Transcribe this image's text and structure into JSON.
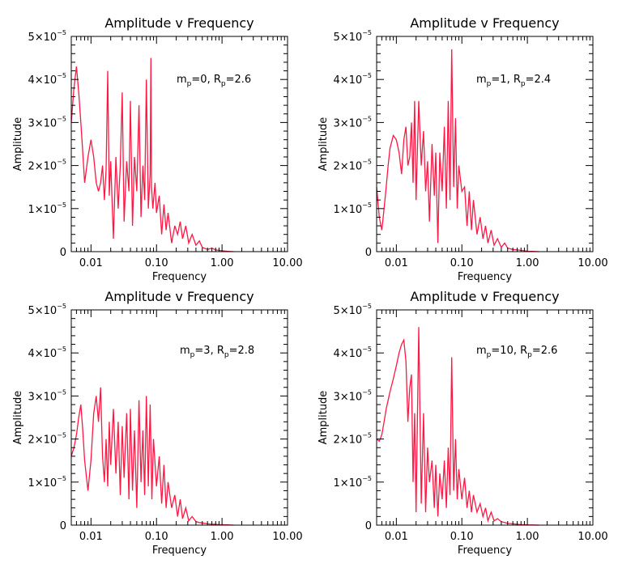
{
  "colors": {
    "series": "#ff1744",
    "axes": "#000000",
    "background": "#ffffff"
  },
  "chart_data": [
    {
      "type": "line",
      "title": "Amplitude v Frequency",
      "xlabel": "Frequency",
      "ylabel": "Amplitude",
      "xscale": "log",
      "xlim": [
        0.005,
        10
      ],
      "ylim": [
        0,
        5e-05
      ],
      "xticks": [
        {
          "value": 0.01,
          "label": "0.01"
        },
        {
          "value": 0.1,
          "label": "0.10"
        },
        {
          "value": 1,
          "label": "1.00"
        },
        {
          "value": 10,
          "label": "10.00"
        }
      ],
      "yticks": [
        {
          "value": 0,
          "base": "0",
          "exp": ""
        },
        {
          "value": 1e-05,
          "base": "1×10",
          "exp": "−5"
        },
        {
          "value": 2e-05,
          "base": "2×10",
          "exp": "−5"
        },
        {
          "value": 3e-05,
          "base": "3×10",
          "exp": "−5"
        },
        {
          "value": 4e-05,
          "base": "4×10",
          "exp": "−5"
        },
        {
          "value": 5e-05,
          "base": "5×10",
          "exp": "−5"
        }
      ],
      "annotation": {
        "m": "0",
        "R": "2.6",
        "m_label": "m",
        "R_label": "R",
        "subscript": "p"
      },
      "series": [
        {
          "name": "amplitude",
          "x": [
            0.005,
            0.0055,
            0.006,
            0.0065,
            0.007,
            0.0075,
            0.008,
            0.009,
            0.01,
            0.011,
            0.012,
            0.013,
            0.014,
            0.015,
            0.016,
            0.017,
            0.018,
            0.019,
            0.02,
            0.022,
            0.024,
            0.026,
            0.028,
            0.03,
            0.032,
            0.035,
            0.038,
            0.04,
            0.043,
            0.046,
            0.05,
            0.054,
            0.058,
            0.062,
            0.066,
            0.07,
            0.075,
            0.08,
            0.082,
            0.084,
            0.088,
            0.095,
            0.1,
            0.11,
            0.12,
            0.13,
            0.14,
            0.15,
            0.17,
            0.19,
            0.21,
            0.23,
            0.25,
            0.28,
            0.31,
            0.35,
            0.4,
            0.45,
            0.5,
            0.6,
            0.7,
            0.8,
            0.9,
            1.0,
            1.2,
            1.5
          ],
          "y": [
            3e-05,
            3.8e-05,
            4.3e-05,
            3.7e-05,
            3e-05,
            2.3e-05,
            1.6e-05,
            2.2e-05,
            2.6e-05,
            2.2e-05,
            1.6e-05,
            1.4e-05,
            1.6e-05,
            2e-05,
            1.2e-05,
            1.9e-05,
            4.2e-05,
            1.3e-05,
            2.1e-05,
            3e-06,
            2.2e-05,
            1e-05,
            2e-05,
            3.7e-05,
            7e-06,
            2.1e-05,
            1.4e-05,
            3.5e-05,
            6e-06,
            2.2e-05,
            1.4e-05,
            3.4e-05,
            8e-06,
            2e-05,
            1.2e-05,
            4e-05,
            1e-05,
            1.8e-05,
            4.5e-05,
            1.5e-05,
            1e-05,
            1.6e-05,
            9e-06,
            1.3e-05,
            4e-06,
            1.1e-05,
            5e-06,
            9e-06,
            2e-06,
            6e-06,
            4e-06,
            7e-06,
            3e-06,
            6e-06,
            2e-06,
            4e-06,
            1.5e-06,
            2.5e-06,
            1e-06,
            5e-07,
            8e-07,
            4e-07,
            3e-07,
            2e-07,
            1e-07,
            0.0
          ]
        }
      ]
    },
    {
      "type": "line",
      "title": "Amplitude v Frequency",
      "xlabel": "Frequency",
      "ylabel": "Amplitude",
      "xscale": "log",
      "xlim": [
        0.005,
        10
      ],
      "ylim": [
        0,
        5e-05
      ],
      "xticks": [
        {
          "value": 0.01,
          "label": "0.01"
        },
        {
          "value": 0.1,
          "label": "0.10"
        },
        {
          "value": 1,
          "label": "1.00"
        },
        {
          "value": 10,
          "label": "10.00"
        }
      ],
      "yticks": [
        {
          "value": 0,
          "base": "0",
          "exp": ""
        },
        {
          "value": 1e-05,
          "base": "1×10",
          "exp": "−5"
        },
        {
          "value": 2e-05,
          "base": "2×10",
          "exp": "−5"
        },
        {
          "value": 3e-05,
          "base": "3×10",
          "exp": "−5"
        },
        {
          "value": 4e-05,
          "base": "4×10",
          "exp": "−5"
        },
        {
          "value": 5e-05,
          "base": "5×10",
          "exp": "−5"
        }
      ],
      "annotation": {
        "m": "1",
        "R": "2.4",
        "m_label": "m",
        "R_label": "R",
        "subscript": "p"
      },
      "series": [
        {
          "name": "amplitude",
          "x": [
            0.005,
            0.0055,
            0.006,
            0.0065,
            0.007,
            0.0075,
            0.008,
            0.009,
            0.01,
            0.011,
            0.012,
            0.013,
            0.014,
            0.015,
            0.016,
            0.017,
            0.018,
            0.019,
            0.02,
            0.022,
            0.024,
            0.026,
            0.028,
            0.03,
            0.032,
            0.035,
            0.038,
            0.04,
            0.043,
            0.046,
            0.05,
            0.054,
            0.058,
            0.062,
            0.066,
            0.07,
            0.075,
            0.08,
            0.085,
            0.09,
            0.1,
            0.11,
            0.12,
            0.13,
            0.14,
            0.15,
            0.17,
            0.19,
            0.21,
            0.23,
            0.25,
            0.28,
            0.31,
            0.35,
            0.4,
            0.45,
            0.5,
            0.6,
            0.7,
            0.8,
            0.9,
            1.0,
            1.2,
            1.5
          ],
          "y": [
            1.5e-05,
            8e-06,
            5e-06,
            1e-05,
            1.5e-05,
            2e-05,
            2.4e-05,
            2.7e-05,
            2.6e-05,
            2.3e-05,
            1.8e-05,
            2.6e-05,
            2.9e-05,
            2e-05,
            2.2e-05,
            3e-05,
            1.6e-05,
            3.5e-05,
            1.2e-05,
            3.5e-05,
            2e-05,
            2.8e-05,
            1.4e-05,
            2.1e-05,
            7e-06,
            2.5e-05,
            1.3e-05,
            2.3e-05,
            2e-06,
            2.3e-05,
            1.4e-05,
            2.9e-05,
            1e-05,
            3.5e-05,
            1.2e-05,
            4.7e-05,
            1.5e-05,
            3.1e-05,
            1e-05,
            2e-05,
            1.4e-05,
            1.5e-05,
            6e-06,
            1.4e-05,
            5e-06,
            1.2e-05,
            4e-06,
            8e-06,
            3e-06,
            6e-06,
            2e-06,
            5e-06,
            1.5e-06,
            3e-06,
            1e-06,
            2e-06,
            8e-07,
            5e-07,
            4e-07,
            3e-07,
            2e-07,
            1e-07,
            5e-08,
            0.0
          ]
        }
      ]
    },
    {
      "type": "line",
      "title": "Amplitude v Frequency",
      "xlabel": "Frequency",
      "ylabel": "Amplitude",
      "xscale": "log",
      "xlim": [
        0.005,
        10
      ],
      "ylim": [
        0,
        5e-05
      ],
      "xticks": [
        {
          "value": 0.01,
          "label": "0.01"
        },
        {
          "value": 0.1,
          "label": "0.10"
        },
        {
          "value": 1,
          "label": "1.00"
        },
        {
          "value": 10,
          "label": "10.00"
        }
      ],
      "yticks": [
        {
          "value": 0,
          "base": "0",
          "exp": ""
        },
        {
          "value": 1e-05,
          "base": "1×10",
          "exp": "−5"
        },
        {
          "value": 2e-05,
          "base": "2×10",
          "exp": "−5"
        },
        {
          "value": 3e-05,
          "base": "3×10",
          "exp": "−5"
        },
        {
          "value": 4e-05,
          "base": "4×10",
          "exp": "−5"
        },
        {
          "value": 5e-05,
          "base": "5×10",
          "exp": "−5"
        }
      ],
      "annotation": {
        "m": "3",
        "R": "2.8",
        "m_label": "m",
        "R_label": "R",
        "subscript": "p"
      },
      "series": [
        {
          "name": "amplitude",
          "x": [
            0.005,
            0.0055,
            0.006,
            0.0065,
            0.007,
            0.0075,
            0.008,
            0.009,
            0.01,
            0.011,
            0.012,
            0.013,
            0.014,
            0.015,
            0.016,
            0.017,
            0.018,
            0.019,
            0.02,
            0.022,
            0.024,
            0.026,
            0.028,
            0.03,
            0.032,
            0.035,
            0.038,
            0.04,
            0.043,
            0.046,
            0.05,
            0.054,
            0.058,
            0.062,
            0.066,
            0.07,
            0.075,
            0.08,
            0.085,
            0.09,
            0.1,
            0.11,
            0.12,
            0.13,
            0.14,
            0.15,
            0.17,
            0.19,
            0.21,
            0.23,
            0.25,
            0.28,
            0.31,
            0.35,
            0.4,
            0.45,
            0.5,
            0.6,
            0.7,
            0.8,
            0.9,
            1.0,
            1.2,
            1.5
          ],
          "y": [
            1.6e-05,
            1.8e-05,
            2.1e-05,
            2.5e-05,
            2.8e-05,
            2.2e-05,
            1.5e-05,
            8e-06,
            1.5e-05,
            2.6e-05,
            3e-05,
            2.4e-05,
            3.2e-05,
            1.6e-05,
            1e-05,
            2e-05,
            9e-06,
            2.4e-05,
            1.4e-05,
            2.7e-05,
            1.2e-05,
            2.4e-05,
            7e-06,
            2.3e-05,
            1.1e-05,
            2.6e-05,
            6e-06,
            2.7e-05,
            8e-06,
            2.2e-05,
            4e-06,
            2.9e-05,
            1e-05,
            2.2e-05,
            7e-06,
            3e-05,
            9e-06,
            2.8e-05,
            6e-06,
            2e-05,
            9e-06,
            1.6e-05,
            5e-06,
            1.4e-05,
            4e-06,
            1e-05,
            4e-06,
            7e-06,
            2e-06,
            6e-06,
            1.5e-06,
            4e-06,
            1e-06,
            2e-06,
            8e-07,
            6e-07,
            5e-07,
            3e-07,
            2e-07,
            2e-07,
            1e-07,
            1e-07,
            5e-08,
            0.0
          ]
        }
      ]
    },
    {
      "type": "line",
      "title": "Amplitude v Frequency",
      "xlabel": "Frequency",
      "ylabel": "Amplitude",
      "xscale": "log",
      "xlim": [
        0.005,
        10
      ],
      "ylim": [
        0,
        5e-05
      ],
      "xticks": [
        {
          "value": 0.01,
          "label": "0.01"
        },
        {
          "value": 0.1,
          "label": "0.10"
        },
        {
          "value": 1,
          "label": "1.00"
        },
        {
          "value": 10,
          "label": "10.00"
        }
      ],
      "yticks": [
        {
          "value": 0,
          "base": "0",
          "exp": ""
        },
        {
          "value": 1e-05,
          "base": "1×10",
          "exp": "−5"
        },
        {
          "value": 2e-05,
          "base": "2×10",
          "exp": "−5"
        },
        {
          "value": 3e-05,
          "base": "3×10",
          "exp": "−5"
        },
        {
          "value": 4e-05,
          "base": "4×10",
          "exp": "−5"
        },
        {
          "value": 5e-05,
          "base": "5×10",
          "exp": "−5"
        }
      ],
      "annotation": {
        "m": "10",
        "R": "2.6",
        "m_label": "m",
        "R_label": "R",
        "subscript": "p"
      },
      "series": [
        {
          "name": "amplitude",
          "x": [
            0.005,
            0.0055,
            0.006,
            0.0065,
            0.007,
            0.0075,
            0.008,
            0.009,
            0.01,
            0.011,
            0.012,
            0.013,
            0.014,
            0.015,
            0.016,
            0.017,
            0.018,
            0.019,
            0.02,
            0.022,
            0.024,
            0.026,
            0.028,
            0.03,
            0.032,
            0.035,
            0.038,
            0.04,
            0.043,
            0.046,
            0.05,
            0.054,
            0.058,
            0.062,
            0.066,
            0.07,
            0.075,
            0.08,
            0.085,
            0.09,
            0.1,
            0.11,
            0.12,
            0.13,
            0.14,
            0.15,
            0.17,
            0.19,
            0.21,
            0.23,
            0.25,
            0.28,
            0.31,
            0.35,
            0.4,
            0.45,
            0.5,
            0.6,
            0.7,
            0.8,
            0.9,
            1.0,
            1.2,
            1.5
          ],
          "y": [
            2e-05,
            1.95e-05,
            2.1e-05,
            2.4e-05,
            2.7e-05,
            2.9e-05,
            3.1e-05,
            3.4e-05,
            3.7e-05,
            4e-05,
            4.2e-05,
            4.3e-05,
            3.8e-05,
            2.4e-05,
            3.2e-05,
            3.5e-05,
            1e-05,
            2.6e-05,
            3e-06,
            4.6e-05,
            5e-06,
            2.6e-05,
            3e-06,
            1.8e-05,
            1e-05,
            1.5e-05,
            4e-06,
            1.4e-05,
            2e-06,
            1.2e-05,
            6e-06,
            1.5e-05,
            4e-06,
            1.8e-05,
            7e-06,
            3.9e-05,
            8e-06,
            2e-05,
            6e-06,
            1.3e-05,
            6e-06,
            1.1e-05,
            4e-06,
            8e-06,
            3e-06,
            7e-06,
            3e-06,
            5e-06,
            2e-06,
            4e-06,
            1e-06,
            3e-06,
            1e-06,
            1.5e-06,
            8e-07,
            6e-07,
            4e-07,
            3e-07,
            2e-07,
            1e-07,
            1e-07,
            5e-08,
            3e-08,
            0.0
          ]
        }
      ]
    }
  ]
}
